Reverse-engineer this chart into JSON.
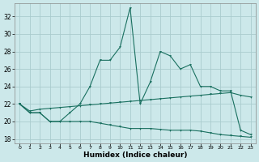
{
  "xlabel": "Humidex (Indice chaleur)",
  "background_color": "#cce8ea",
  "grid_color": "#aaccce",
  "line_color": "#1a7060",
  "x": [
    0,
    1,
    2,
    3,
    4,
    5,
    6,
    7,
    8,
    9,
    10,
    11,
    12,
    13,
    14,
    15,
    16,
    17,
    18,
    19,
    20,
    21,
    22,
    23
  ],
  "y_max": [
    22,
    21,
    21,
    20,
    20,
    21,
    22,
    24,
    27,
    27,
    28.5,
    33,
    22,
    24.5,
    28,
    27.5,
    26,
    26.5,
    24,
    24,
    23.5,
    23.5,
    19,
    18.5
  ],
  "y_mean": [
    22,
    21.2,
    21.4,
    21.5,
    21.6,
    21.7,
    21.8,
    21.9,
    22.0,
    22.1,
    22.2,
    22.3,
    22.4,
    22.5,
    22.6,
    22.7,
    22.8,
    22.9,
    23.0,
    23.1,
    23.2,
    23.3,
    23.0,
    22.8
  ],
  "y_min": [
    22,
    21,
    21,
    20,
    20,
    20,
    20,
    20,
    19.8,
    19.6,
    19.4,
    19.2,
    19.2,
    19.2,
    19.1,
    19.0,
    19.0,
    19.0,
    18.9,
    18.7,
    18.5,
    18.4,
    18.3,
    18.2
  ],
  "xlim": [
    -0.5,
    23.5
  ],
  "ylim": [
    17.5,
    33.5
  ],
  "yticks": [
    18,
    20,
    22,
    24,
    26,
    28,
    30,
    32
  ],
  "xticks": [
    0,
    1,
    2,
    3,
    4,
    5,
    6,
    7,
    8,
    9,
    10,
    11,
    12,
    13,
    14,
    15,
    16,
    17,
    18,
    19,
    20,
    21,
    22,
    23
  ]
}
